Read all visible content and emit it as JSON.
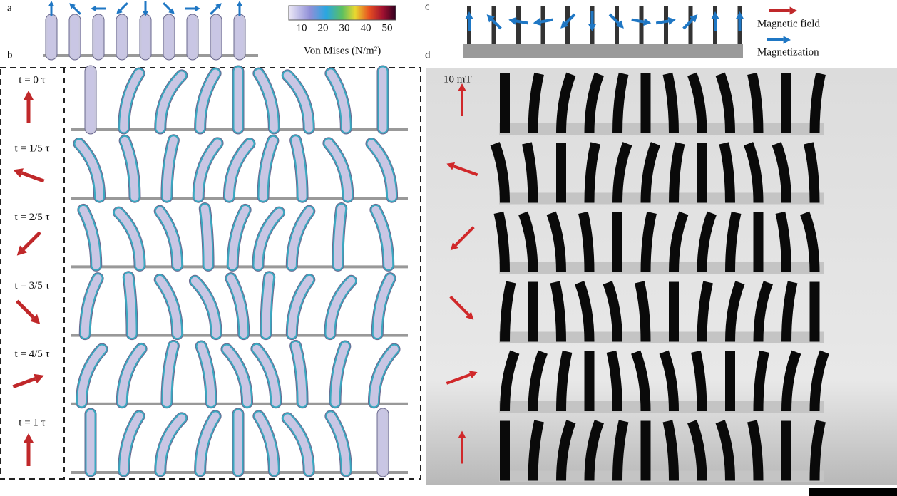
{
  "panels": {
    "a": "a",
    "b": "b",
    "c": "c",
    "d": "d"
  },
  "colorbar": {
    "ticks": [
      "10",
      "20",
      "30",
      "40",
      "50"
    ],
    "label": "Von Mises (N/m²)"
  },
  "rows": [
    "t = 0 τ",
    "t = 1/5 τ",
    "t = 2/5 τ",
    "t = 3/5 τ",
    "t = 4/5 τ",
    "t = 1 τ"
  ],
  "field_strength": "10 mT",
  "legend": {
    "field": "Magnetic field",
    "magnetization": "Magnetization"
  }
}
